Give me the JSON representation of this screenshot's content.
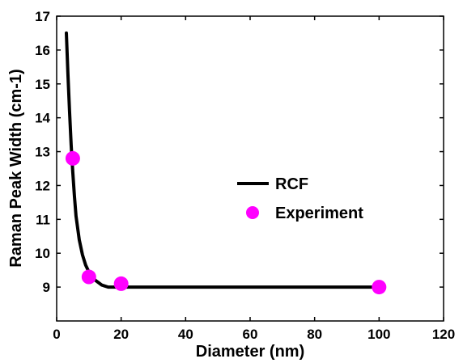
{
  "chart_data": {
    "type": "line",
    "xlabel": "Diameter (nm)",
    "ylabel": "Raman Peak Width (cm-1)",
    "xlim": [
      0,
      120
    ],
    "ylim": [
      8,
      17
    ],
    "xticks": [
      "0",
      "20",
      "40",
      "60",
      "80",
      "100",
      "120"
    ],
    "yticks": [
      "9",
      "10",
      "11",
      "12",
      "13",
      "14",
      "15",
      "16",
      "17"
    ],
    "grid": false,
    "legend_position": "center-right",
    "series": [
      {
        "name": "RCF",
        "kind": "line",
        "color": "#000000",
        "x": [
          3,
          3.5,
          4,
          4.5,
          5,
          5.5,
          6,
          7,
          8,
          9,
          10,
          12,
          14,
          16,
          18,
          20,
          30,
          40,
          60,
          80,
          100
        ],
        "y": [
          16.5,
          15.3,
          14.2,
          13.2,
          12.4,
          11.7,
          11.1,
          10.4,
          9.95,
          9.65,
          9.45,
          9.2,
          9.06,
          9.0,
          9.0,
          9.0,
          9.0,
          9.0,
          9.0,
          9.0,
          9.0
        ]
      },
      {
        "name": "Experiment",
        "kind": "scatter",
        "color": "#ff00ff",
        "x": [
          5,
          10,
          20,
          100
        ],
        "y": [
          12.8,
          9.3,
          9.1,
          9.0
        ]
      }
    ]
  }
}
